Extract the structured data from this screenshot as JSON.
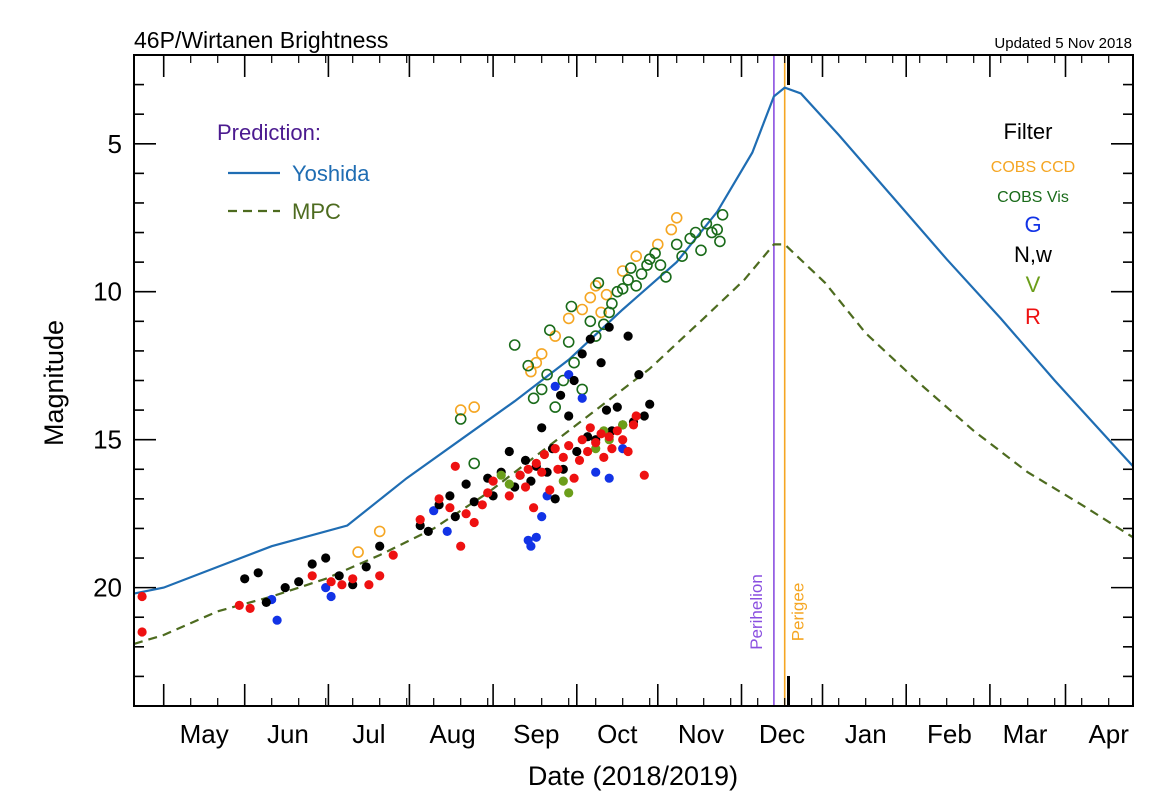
{
  "chart_data": {
    "type": "scatter",
    "title": "46P/Wirtanen Brightness",
    "subtitle": "Updated  5 Nov 2018",
    "xlabel": "Date (2018/2019)",
    "ylabel": "Magnitude",
    "x_unit": "days from 2018-05-01",
    "xlim": [
      -11,
      359
    ],
    "ylim": [
      24,
      2
    ],
    "y_inverted": true,
    "y_ticks": [
      5,
      10,
      15,
      20
    ],
    "x_tick_months": [
      {
        "label": "May",
        "center": 15
      },
      {
        "label": "Jun",
        "center": 46
      },
      {
        "label": "Jul",
        "center": 76
      },
      {
        "label": "Aug",
        "center": 107
      },
      {
        "label": "Sep",
        "center": 138
      },
      {
        "label": "Oct",
        "center": 168
      },
      {
        "label": "Nov",
        "center": 199
      },
      {
        "label": "Dec",
        "center": 229
      },
      {
        "label": "Jan",
        "center": 260
      },
      {
        "label": "Feb",
        "center": 291
      },
      {
        "label": "Mar",
        "center": 319
      },
      {
        "label": "Apr",
        "center": 350
      }
    ],
    "x_major_ticks": [
      0,
      30,
      61,
      91,
      122,
      153,
      183,
      214,
      244,
      275,
      306,
      334
    ],
    "legend_prediction": {
      "heading": "Prediction:",
      "items": [
        {
          "name": "Yoshida",
          "style": "solid",
          "color": "#1f6db3"
        },
        {
          "name": "MPC",
          "style": "dashed",
          "color": "#4d6b1f"
        }
      ]
    },
    "legend_filter": {
      "heading": "Filter",
      "items": [
        {
          "name": "COBS CCD",
          "color": "#f5a623"
        },
        {
          "name": "COBS Vis",
          "color": "#1a6b1a"
        },
        {
          "name": "G",
          "color": "#1233e6"
        },
        {
          "name": "N,w",
          "color": "#000000"
        },
        {
          "name": "V",
          "color": "#6b9e1a"
        },
        {
          "name": "R",
          "color": "#ee1111"
        }
      ]
    },
    "vlines": [
      {
        "name": "Perihelion",
        "x": 226,
        "color": "#8a4fe0"
      },
      {
        "name": "Perigee",
        "x": 230,
        "color": "#f5a623"
      }
    ],
    "series": [
      {
        "name": "Yoshida",
        "type": "line",
        "color": "#1f6db3",
        "points": [
          [
            -11,
            20.2
          ],
          [
            0,
            20.0
          ],
          [
            20,
            19.3
          ],
          [
            40,
            18.6
          ],
          [
            68,
            17.9
          ],
          [
            90,
            16.3
          ],
          [
            110,
            15.0
          ],
          [
            130,
            13.7
          ],
          [
            150,
            12.3
          ],
          [
            170,
            10.6
          ],
          [
            190,
            9.0
          ],
          [
            205,
            7.3
          ],
          [
            218,
            5.3
          ],
          [
            226,
            3.4
          ],
          [
            230,
            3.1
          ],
          [
            236,
            3.3
          ],
          [
            250,
            4.7
          ],
          [
            270,
            6.8
          ],
          [
            290,
            8.9
          ],
          [
            310,
            10.9
          ],
          [
            330,
            13.0
          ],
          [
            350,
            15.0
          ],
          [
            359,
            15.9
          ]
        ]
      },
      {
        "name": "MPC",
        "type": "line",
        "style": "dashed",
        "color": "#4d6b1f",
        "points": [
          [
            -11,
            21.9
          ],
          [
            0,
            21.6
          ],
          [
            20,
            20.8
          ],
          [
            40,
            20.3
          ],
          [
            60,
            19.7
          ],
          [
            80,
            18.9
          ],
          [
            100,
            18.0
          ],
          [
            120,
            16.8
          ],
          [
            140,
            15.4
          ],
          [
            160,
            14.0
          ],
          [
            180,
            12.6
          ],
          [
            200,
            10.9
          ],
          [
            215,
            9.6
          ],
          [
            226,
            8.4
          ],
          [
            230,
            8.4
          ],
          [
            245,
            9.7
          ],
          [
            260,
            11.4
          ],
          [
            280,
            13.1
          ],
          [
            300,
            14.7
          ],
          [
            320,
            16.1
          ],
          [
            340,
            17.2
          ],
          [
            359,
            18.3
          ]
        ]
      },
      {
        "name": "COBS CCD",
        "marker": "open-circle",
        "color": "#f5a623",
        "points": [
          [
            110,
            14.0
          ],
          [
            115,
            13.9
          ],
          [
            80,
            18.1
          ],
          [
            72,
            18.8
          ],
          [
            136,
            12.7
          ],
          [
            138,
            12.4
          ],
          [
            140,
            12.1
          ],
          [
            145,
            11.5
          ],
          [
            150,
            10.9
          ],
          [
            155,
            10.6
          ],
          [
            158,
            10.2
          ],
          [
            160,
            9.8
          ],
          [
            162,
            10.7
          ],
          [
            164,
            10.1
          ],
          [
            170,
            9.3
          ],
          [
            175,
            8.8
          ],
          [
            183,
            8.4
          ],
          [
            188,
            7.9
          ],
          [
            190,
            7.5
          ]
        ]
      },
      {
        "name": "COBS Vis",
        "marker": "open-circle",
        "color": "#1a6b1a",
        "points": [
          [
            110,
            14.3
          ],
          [
            115,
            15.8
          ],
          [
            130,
            11.8
          ],
          [
            135,
            12.5
          ],
          [
            137,
            13.6
          ],
          [
            140,
            13.3
          ],
          [
            142,
            12.8
          ],
          [
            143,
            11.3
          ],
          [
            145,
            13.9
          ],
          [
            148,
            13.0
          ],
          [
            150,
            11.7
          ],
          [
            151,
            10.5
          ],
          [
            152,
            12.4
          ],
          [
            155,
            13.3
          ],
          [
            158,
            11.0
          ],
          [
            160,
            11.5
          ],
          [
            161,
            9.7
          ],
          [
            163,
            11.1
          ],
          [
            165,
            10.7
          ],
          [
            166,
            10.4
          ],
          [
            168,
            10.0
          ],
          [
            170,
            9.9
          ],
          [
            172,
            9.6
          ],
          [
            173,
            9.2
          ],
          [
            175,
            9.8
          ],
          [
            177,
            9.4
          ],
          [
            179,
            9.1
          ],
          [
            180,
            8.9
          ],
          [
            182,
            8.7
          ],
          [
            184,
            9.1
          ],
          [
            186,
            9.5
          ],
          [
            190,
            8.4
          ],
          [
            192,
            8.8
          ],
          [
            195,
            8.2
          ],
          [
            197,
            8.0
          ],
          [
            199,
            8.6
          ],
          [
            201,
            7.7
          ],
          [
            203,
            8.0
          ],
          [
            205,
            7.9
          ],
          [
            206,
            8.3
          ],
          [
            207,
            7.4
          ]
        ]
      },
      {
        "name": "G",
        "marker": "filled-circle",
        "color": "#1233e6",
        "points": [
          [
            40,
            20.4
          ],
          [
            42,
            21.1
          ],
          [
            60,
            20.0
          ],
          [
            62,
            20.3
          ],
          [
            100,
            17.4
          ],
          [
            105,
            18.1
          ],
          [
            135,
            18.4
          ],
          [
            136,
            18.6
          ],
          [
            138,
            18.3
          ],
          [
            140,
            17.6
          ],
          [
            142,
            16.9
          ],
          [
            145,
            13.2
          ],
          [
            150,
            12.8
          ],
          [
            155,
            13.6
          ],
          [
            160,
            16.1
          ],
          [
            165,
            16.3
          ],
          [
            170,
            15.3
          ]
        ]
      },
      {
        "name": "N,w",
        "marker": "filled-circle",
        "color": "#000000",
        "points": [
          [
            30,
            19.7
          ],
          [
            35,
            19.5
          ],
          [
            38,
            20.5
          ],
          [
            45,
            20.0
          ],
          [
            50,
            19.8
          ],
          [
            55,
            19.2
          ],
          [
            60,
            19.0
          ],
          [
            65,
            19.6
          ],
          [
            70,
            19.9
          ],
          [
            75,
            19.3
          ],
          [
            80,
            18.6
          ],
          [
            95,
            17.9
          ],
          [
            98,
            18.1
          ],
          [
            102,
            17.2
          ],
          [
            106,
            16.9
          ],
          [
            108,
            17.6
          ],
          [
            112,
            16.5
          ],
          [
            115,
            17.1
          ],
          [
            120,
            16.3
          ],
          [
            122,
            16.9
          ],
          [
            125,
            16.1
          ],
          [
            128,
            15.4
          ],
          [
            130,
            16.6
          ],
          [
            132,
            16.2
          ],
          [
            134,
            15.7
          ],
          [
            136,
            16.4
          ],
          [
            138,
            15.9
          ],
          [
            140,
            14.6
          ],
          [
            142,
            16.1
          ],
          [
            144,
            15.3
          ],
          [
            145,
            17.0
          ],
          [
            147,
            13.5
          ],
          [
            148,
            16.0
          ],
          [
            150,
            14.2
          ],
          [
            152,
            13.0
          ],
          [
            153,
            15.4
          ],
          [
            155,
            12.1
          ],
          [
            157,
            14.9
          ],
          [
            158,
            11.6
          ],
          [
            160,
            15.0
          ],
          [
            162,
            12.4
          ],
          [
            164,
            14.0
          ],
          [
            165,
            11.2
          ],
          [
            166,
            14.7
          ],
          [
            168,
            13.9
          ],
          [
            170,
            14.5
          ],
          [
            172,
            11.5
          ],
          [
            174,
            14.4
          ],
          [
            176,
            12.8
          ],
          [
            178,
            14.2
          ],
          [
            180,
            13.8
          ]
        ]
      },
      {
        "name": "V",
        "marker": "filled-circle",
        "color": "#6b9e1a",
        "points": [
          [
            125,
            16.2
          ],
          [
            128,
            16.5
          ],
          [
            148,
            16.4
          ],
          [
            150,
            16.8
          ],
          [
            160,
            15.3
          ],
          [
            163,
            14.7
          ],
          [
            165,
            15.0
          ],
          [
            170,
            14.5
          ]
        ]
      },
      {
        "name": "R",
        "marker": "filled-circle",
        "color": "#ee1111",
        "points": [
          [
            -8,
            20.3
          ],
          [
            -8,
            21.5
          ],
          [
            28,
            20.6
          ],
          [
            32,
            20.7
          ],
          [
            55,
            19.6
          ],
          [
            62,
            19.8
          ],
          [
            66,
            19.9
          ],
          [
            70,
            19.7
          ],
          [
            76,
            19.9
          ],
          [
            80,
            19.6
          ],
          [
            85,
            18.9
          ],
          [
            95,
            17.7
          ],
          [
            102,
            17.0
          ],
          [
            106,
            17.3
          ],
          [
            108,
            15.9
          ],
          [
            110,
            18.6
          ],
          [
            112,
            17.5
          ],
          [
            115,
            17.8
          ],
          [
            118,
            17.2
          ],
          [
            120,
            16.8
          ],
          [
            122,
            16.4
          ],
          [
            128,
            16.9
          ],
          [
            132,
            16.2
          ],
          [
            134,
            16.6
          ],
          [
            135,
            16.0
          ],
          [
            137,
            17.3
          ],
          [
            138,
            15.8
          ],
          [
            140,
            16.1
          ],
          [
            141,
            15.5
          ],
          [
            143,
            16.7
          ],
          [
            145,
            15.3
          ],
          [
            146,
            16.0
          ],
          [
            148,
            15.6
          ],
          [
            150,
            15.2
          ],
          [
            152,
            16.3
          ],
          [
            154,
            15.7
          ],
          [
            155,
            15.0
          ],
          [
            157,
            15.4
          ],
          [
            158,
            14.6
          ],
          [
            160,
            15.1
          ],
          [
            162,
            14.8
          ],
          [
            163,
            15.6
          ],
          [
            165,
            14.9
          ],
          [
            166,
            15.3
          ],
          [
            168,
            14.7
          ],
          [
            170,
            15.0
          ],
          [
            172,
            15.4
          ],
          [
            174,
            14.5
          ],
          [
            175,
            14.2
          ],
          [
            178,
            16.2
          ]
        ]
      }
    ]
  }
}
